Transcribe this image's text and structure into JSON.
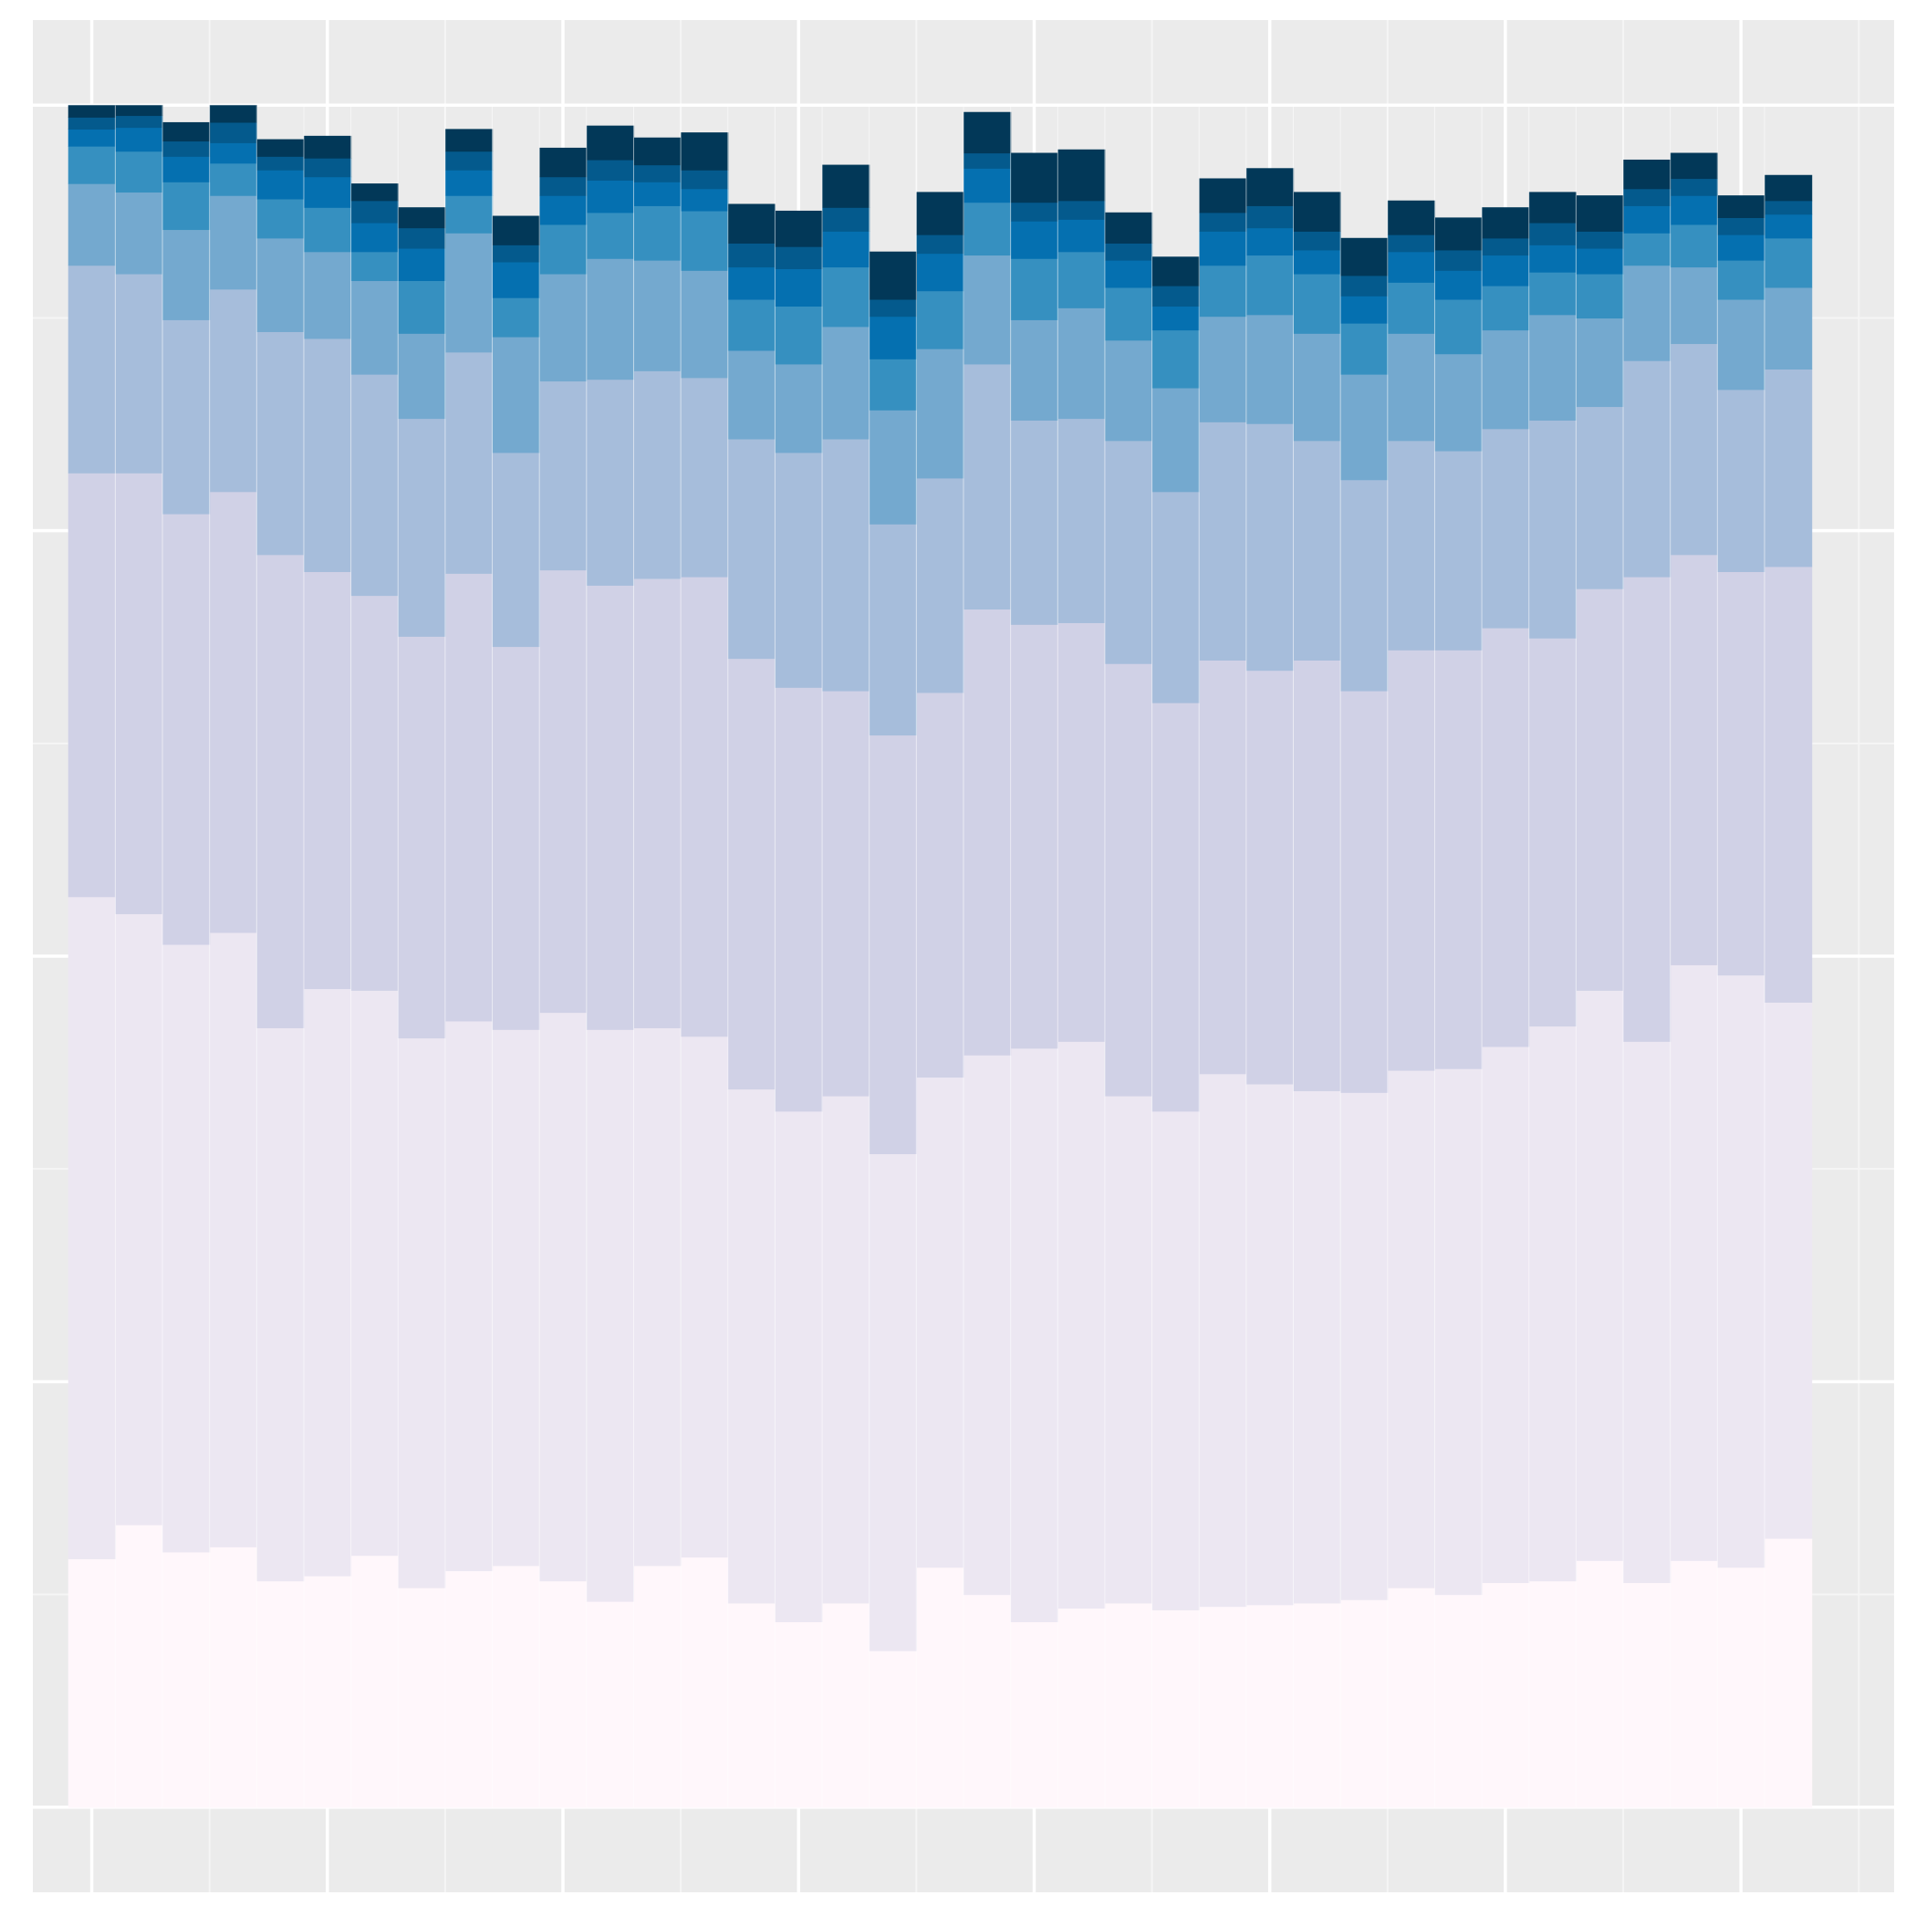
{
  "chart_data": {
    "type": "bar",
    "stacked": true,
    "normalized": true,
    "title": "",
    "xlabel": "",
    "ylabel": "",
    "xlim": [
      -1.25,
      38.25
    ],
    "ylim": [
      -0.05,
      1.05
    ],
    "grid": true,
    "legend": "none",
    "x": [
      0,
      1,
      2,
      3,
      4,
      5,
      6,
      7,
      8,
      9,
      10,
      11,
      12,
      13,
      14,
      15,
      16,
      17,
      18,
      19,
      20,
      21,
      22,
      23,
      24,
      25,
      26,
      27,
      28,
      29,
      30,
      31,
      32,
      33,
      34,
      35,
      36
    ],
    "series": [
      {
        "color": "#fff7fb",
        "values": [
          0.146,
          0.166,
          0.15,
          0.153,
          0.133,
          0.136,
          0.148,
          0.129,
          0.139,
          0.142,
          0.133,
          0.121,
          0.142,
          0.147,
          0.12,
          0.109,
          0.12,
          0.092,
          0.141,
          0.125,
          0.109,
          0.117,
          0.12,
          0.116,
          0.118,
          0.119,
          0.12,
          0.122,
          0.129,
          0.125,
          0.132,
          0.133,
          0.145,
          0.132,
          0.145,
          0.141,
          0.158
        ]
      },
      {
        "color": "#ece7f2",
        "values": [
          0.389,
          0.359,
          0.357,
          0.361,
          0.325,
          0.345,
          0.332,
          0.323,
          0.323,
          0.315,
          0.334,
          0.336,
          0.316,
          0.306,
          0.302,
          0.3,
          0.298,
          0.292,
          0.288,
          0.317,
          0.337,
          0.333,
          0.298,
          0.293,
          0.313,
          0.306,
          0.301,
          0.298,
          0.304,
          0.309,
          0.315,
          0.326,
          0.335,
          0.318,
          0.35,
          0.348,
          0.315
        ]
      },
      {
        "color": "#d0d1e6",
        "values": [
          0.249,
          0.259,
          0.253,
          0.259,
          0.278,
          0.245,
          0.232,
          0.236,
          0.263,
          0.225,
          0.26,
          0.261,
          0.264,
          0.27,
          0.253,
          0.249,
          0.238,
          0.246,
          0.226,
          0.262,
          0.249,
          0.246,
          0.254,
          0.24,
          0.243,
          0.243,
          0.253,
          0.236,
          0.247,
          0.246,
          0.246,
          0.228,
          0.236,
          0.273,
          0.241,
          0.237,
          0.256
        ]
      },
      {
        "color": "#a6bddb",
        "values": [
          0.122,
          0.117,
          0.114,
          0.119,
          0.131,
          0.137,
          0.13,
          0.128,
          0.13,
          0.114,
          0.111,
          0.121,
          0.122,
          0.117,
          0.129,
          0.138,
          0.148,
          0.124,
          0.126,
          0.144,
          0.12,
          0.12,
          0.131,
          0.124,
          0.14,
          0.145,
          0.129,
          0.124,
          0.123,
          0.117,
          0.117,
          0.128,
          0.107,
          0.127,
          0.124,
          0.107,
          0.116
        ]
      },
      {
        "color": "#74a9cf",
        "values": [
          0.048,
          0.048,
          0.053,
          0.055,
          0.055,
          0.051,
          0.055,
          0.05,
          0.07,
          0.068,
          0.063,
          0.071,
          0.065,
          0.063,
          0.052,
          0.052,
          0.066,
          0.067,
          0.076,
          0.064,
          0.059,
          0.065,
          0.059,
          0.061,
          0.062,
          0.064,
          0.063,
          0.062,
          0.063,
          0.057,
          0.058,
          0.062,
          0.052,
          0.056,
          0.045,
          0.053,
          0.048
        ]
      },
      {
        "color": "#3690c0",
        "values": [
          0.022,
          0.024,
          0.028,
          0.019,
          0.023,
          0.026,
          0.017,
          0.031,
          0.022,
          0.023,
          0.029,
          0.027,
          0.032,
          0.035,
          0.03,
          0.034,
          0.035,
          0.03,
          0.034,
          0.031,
          0.036,
          0.033,
          0.031,
          0.034,
          0.03,
          0.035,
          0.035,
          0.03,
          0.03,
          0.032,
          0.026,
          0.025,
          0.026,
          0.019,
          0.025,
          0.023,
          0.029
        ]
      },
      {
        "color": "#0570b0",
        "values": [
          0.01,
          0.014,
          0.015,
          0.012,
          0.017,
          0.018,
          0.017,
          0.019,
          0.015,
          0.021,
          0.017,
          0.019,
          0.014,
          0.013,
          0.019,
          0.022,
          0.021,
          0.025,
          0.022,
          0.02,
          0.022,
          0.019,
          0.016,
          0.014,
          0.02,
          0.016,
          0.014,
          0.016,
          0.018,
          0.017,
          0.018,
          0.016,
          0.015,
          0.016,
          0.017,
          0.015,
          0.014
        ]
      },
      {
        "color": "#045a8d",
        "values": [
          0.007,
          0.007,
          0.009,
          0.012,
          0.008,
          0.011,
          0.013,
          0.012,
          0.011,
          0.01,
          0.011,
          0.012,
          0.01,
          0.011,
          0.014,
          0.013,
          0.014,
          0.01,
          0.011,
          0.009,
          0.011,
          0.011,
          0.01,
          0.012,
          0.011,
          0.013,
          0.011,
          0.012,
          0.01,
          0.012,
          0.01,
          0.013,
          0.01,
          0.01,
          0.01,
          0.01,
          0.008
        ]
      },
      {
        "color": "#023858",
        "values": [
          0.007,
          0.006,
          0.011,
          0.01,
          0.01,
          0.013,
          0.01,
          0.012,
          0.013,
          0.017,
          0.017,
          0.02,
          0.016,
          0.022,
          0.023,
          0.021,
          0.025,
          0.028,
          0.025,
          0.024,
          0.029,
          0.03,
          0.018,
          0.017,
          0.02,
          0.022,
          0.023,
          0.022,
          0.02,
          0.019,
          0.018,
          0.018,
          0.021,
          0.017,
          0.015,
          0.013,
          0.015
        ]
      }
    ]
  },
  "theme": {
    "panel_bg": "#ebebeb",
    "grid_major": "#ffffff",
    "grid_minor": "#f5f5f5",
    "page_bg": "#ffffff"
  }
}
